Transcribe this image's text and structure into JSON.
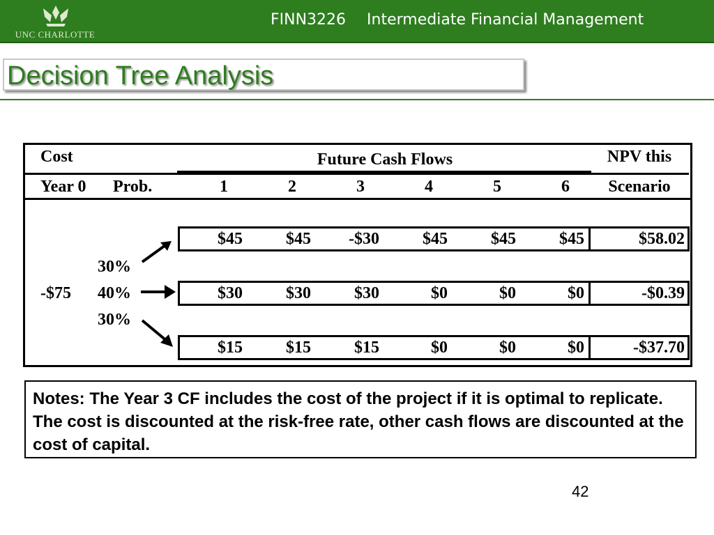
{
  "header": {
    "logo_text": "UNC CHARLOTTE",
    "course_code": "FINN3226",
    "course_name": "Intermediate Financial Management"
  },
  "title": "Decision Tree Analysis",
  "table": {
    "cost_header": "Cost",
    "future_cf_header": "Future Cash Flows",
    "npv_header_1": "NPV this",
    "npv_header_2": "Scenario",
    "year0_header": "Year 0",
    "prob_header": "Prob.",
    "years": [
      "1",
      "2",
      "3",
      "4",
      "5",
      "6"
    ],
    "initial_cost": "-$75",
    "probabilities": [
      "30%",
      "40%",
      "30%"
    ],
    "rows": [
      {
        "cfs": [
          "$45",
          "$45",
          "-$30",
          "$45",
          "$45",
          "$45"
        ],
        "npv": "$58.02"
      },
      {
        "cfs": [
          "$30",
          "$30",
          "$30",
          "$0",
          "$0",
          "$0"
        ],
        "npv": "-$0.39"
      },
      {
        "cfs": [
          "$15",
          "$15",
          "$15",
          "$0",
          "$0",
          "$0"
        ],
        "npv": "-$37.70"
      }
    ]
  },
  "notes": "Notes: The Year 3 CF includes the cost of the project if it is optimal to replicate.  The cost is discounted at the risk-free rate, other cash flows are discounted at the cost of capital.",
  "page_number": "42",
  "colors": {
    "brand_green": "#2e7d1f"
  }
}
